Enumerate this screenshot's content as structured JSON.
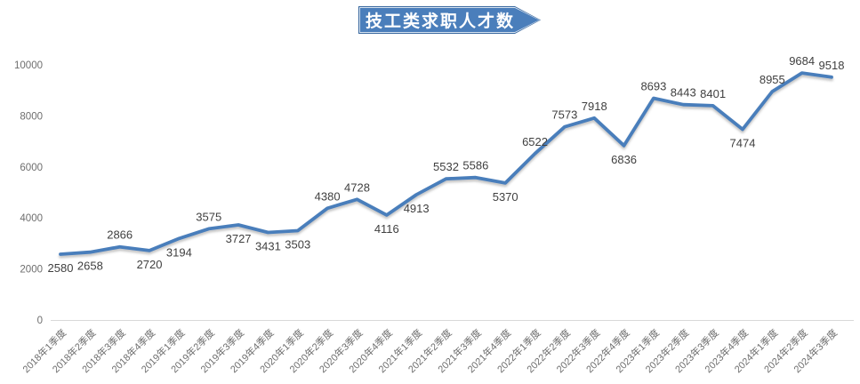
{
  "title": {
    "text": "技工类求职人才数",
    "banner_fill": "#4A7EBB",
    "banner_border": "#39689E",
    "banner_inner_line": "#D9E4F1"
  },
  "chart_data": {
    "type": "line",
    "title": "技工类求职人才数",
    "categories": [
      "2018年1季度",
      "2018年2季度",
      "2018年3季度",
      "2018年4季度",
      "2019年1季度",
      "2019年2季度",
      "2019年3季度",
      "2019年4季度",
      "2020年1季度",
      "2020年2季度",
      "2020年3季度",
      "2020年4季度",
      "2021年1季度",
      "2021年2季度",
      "2021年3季度",
      "2021年4季度",
      "2022年1季度",
      "2022年2季度",
      "2022年3季度",
      "2022年4季度",
      "2023年1季度",
      "2023年2季度",
      "2023年3季度",
      "2023年4季度",
      "2024年1季度",
      "2024年2季度",
      "2024年3季度"
    ],
    "values": [
      2580,
      2658,
      2866,
      2720,
      3194,
      3575,
      3727,
      3431,
      3503,
      4380,
      4728,
      4116,
      4913,
      5532,
      5586,
      5370,
      6522,
      7573,
      7918,
      6836,
      8693,
      8443,
      8401,
      7474,
      8955,
      9684,
      9518
    ],
    "data_label_side": [
      "below",
      "below",
      "above",
      "below",
      "below",
      "above",
      "below",
      "below",
      "below",
      "above",
      "above",
      "below",
      "below",
      "above",
      "above",
      "below",
      "above",
      "above",
      "above",
      "below",
      "above",
      "above",
      "above",
      "below",
      "above",
      "above",
      "above"
    ],
    "xlabel": "",
    "ylabel": "",
    "ylim": [
      0,
      10000
    ],
    "yticks": [
      0,
      2000,
      4000,
      6000,
      8000,
      10000
    ],
    "grid": false,
    "legend_position": "none",
    "line_color": "#4A7EBB",
    "data_label_color": "#3F3F3F",
    "tick_label_color": "#6E6E6E",
    "axis_line_color": "#D9D9D9"
  }
}
